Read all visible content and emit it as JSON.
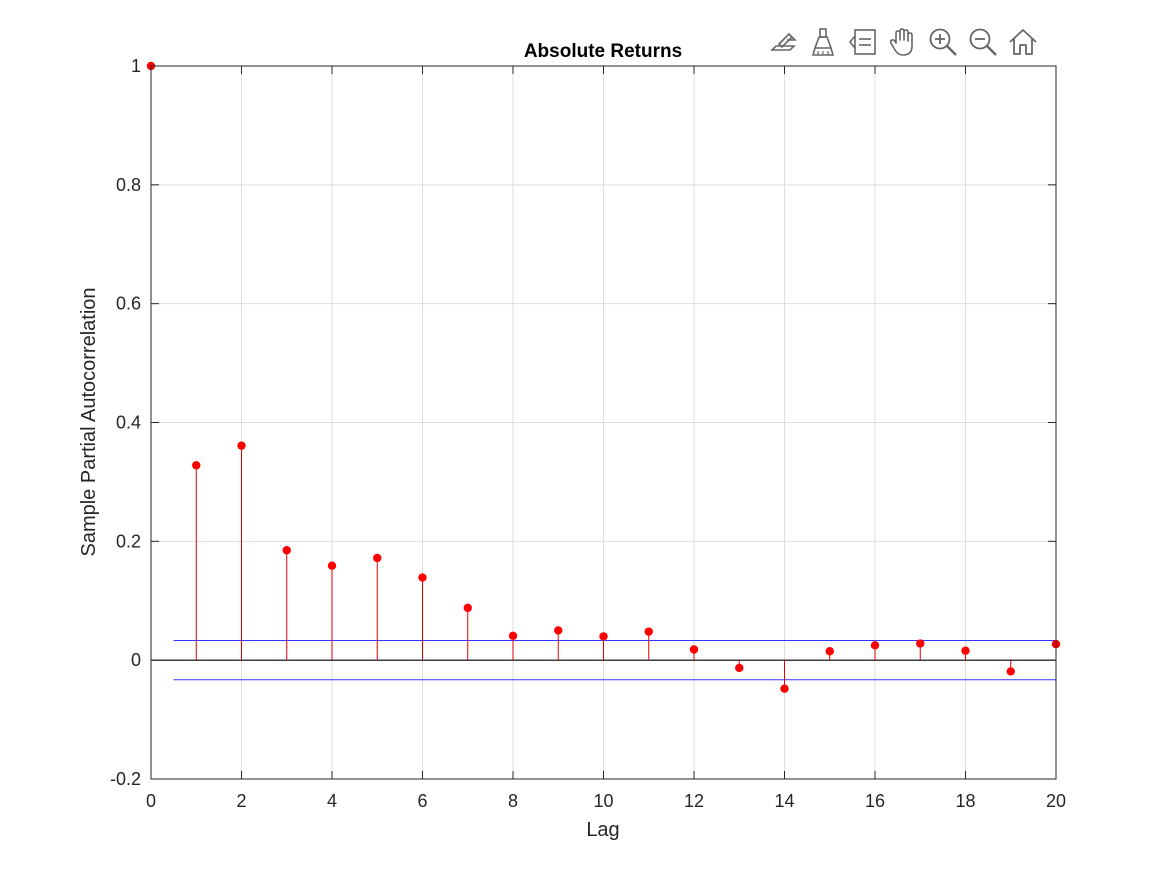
{
  "toolbar": {
    "buttons": [
      {
        "name": "edit-plot-icon"
      },
      {
        "name": "data-brush-icon"
      },
      {
        "name": "legend-toggle-icon"
      },
      {
        "name": "pan-hand-icon"
      },
      {
        "name": "zoom-in-icon"
      },
      {
        "name": "zoom-out-icon"
      },
      {
        "name": "home-restore-view-icon"
      }
    ]
  },
  "chart_data": {
    "type": "stem",
    "title": "Absolute Returns",
    "xlabel": "Lag",
    "ylabel": "Sample Partial Autocorrelation",
    "xlim": [
      0,
      20
    ],
    "ylim": [
      -0.2,
      1
    ],
    "xticks": [
      "0",
      "2",
      "4",
      "6",
      "8",
      "10",
      "12",
      "14",
      "16",
      "18",
      "20"
    ],
    "yticks": [
      "-0.2",
      "0",
      "0.2",
      "0.4",
      "0.6",
      "0.8",
      "1"
    ],
    "grid": true,
    "x": [
      0,
      1,
      2,
      3,
      4,
      5,
      6,
      7,
      8,
      9,
      10,
      11,
      12,
      13,
      14,
      15,
      16,
      17,
      18,
      19,
      20
    ],
    "values": [
      1.0,
      0.328,
      0.361,
      0.185,
      0.159,
      0.172,
      0.139,
      0.088,
      0.041,
      0.05,
      0.04,
      0.048,
      0.018,
      -0.013,
      -0.048,
      0.015,
      0.025,
      0.028,
      0.016,
      -0.019,
      0.027
    ],
    "confidence_bounds": {
      "upper": 0.033,
      "lower": -0.033,
      "x_range": [
        0.5,
        20
      ]
    },
    "colors": {
      "stem": "#e60000",
      "marker": "#ff0000",
      "bounds": "#3333ff",
      "zero_line": "#000000",
      "grid": "#dedede",
      "axis": "#262626"
    }
  }
}
